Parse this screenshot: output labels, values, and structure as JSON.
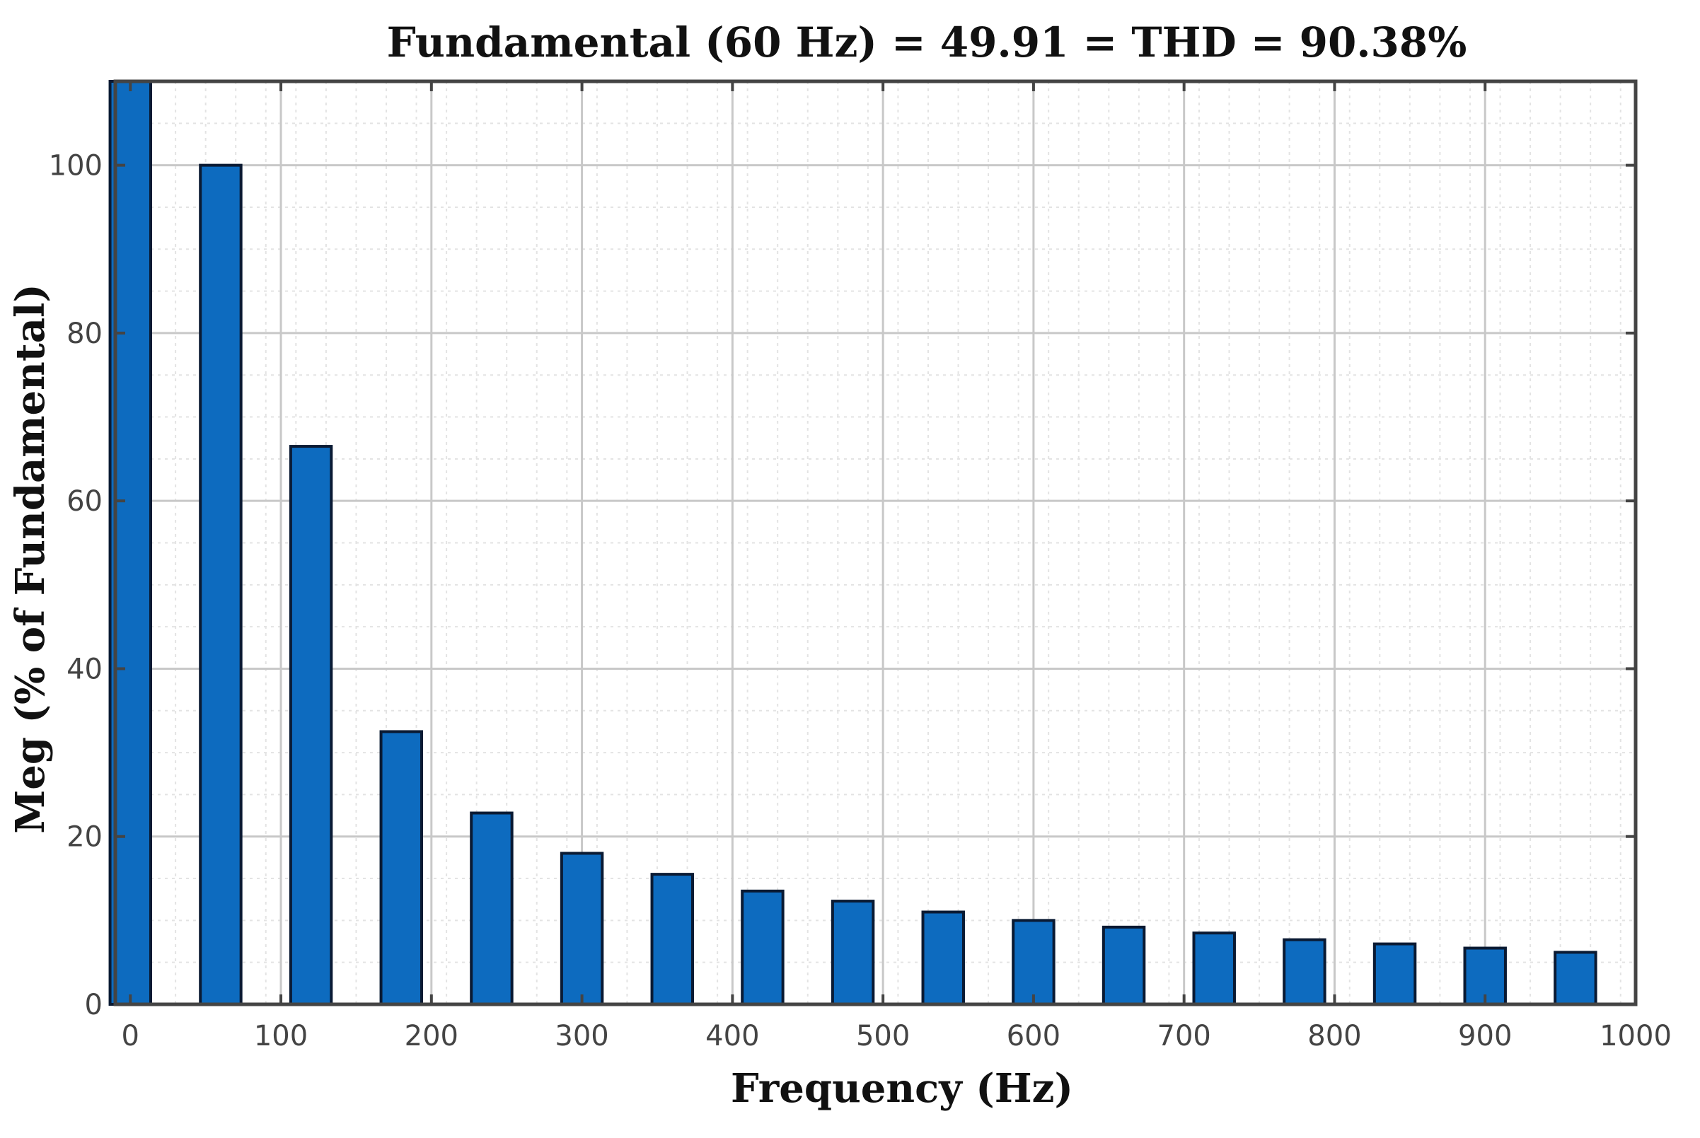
{
  "chart_data": {
    "type": "bar",
    "title": "Fundamental (60 Hz) = 49.91 = THD = 90.38%",
    "xlabel": "Frequency (Hz)",
    "ylabel": "Meg (% of Fundamental)",
    "x": [
      0,
      60,
      120,
      180,
      240,
      300,
      360,
      420,
      480,
      540,
      600,
      660,
      720,
      780,
      840,
      900,
      960
    ],
    "values": [
      110,
      100,
      66.5,
      32.5,
      22.8,
      18,
      15.5,
      13.5,
      12.3,
      11,
      10,
      9.2,
      8.5,
      7.7,
      7.2,
      6.7,
      6.2
    ],
    "xlim": [
      -10,
      1000
    ],
    "ylim": [
      0,
      110
    ],
    "xticks": [
      0,
      100,
      200,
      300,
      400,
      500,
      600,
      700,
      800,
      900,
      1000
    ],
    "yticks": [
      0,
      20,
      40,
      60,
      80,
      100
    ],
    "xtick_labels": [
      "0",
      "100",
      "200",
      "300",
      "400",
      "500",
      "600",
      "700",
      "800",
      "900",
      "1000"
    ],
    "ytick_labels": [
      "0",
      "20",
      "40",
      "60",
      "80",
      "100"
    ],
    "grid": "on",
    "minor_grid": "on",
    "bar_color": "#0d6bbf",
    "bar_edge_color": "#0a1a33"
  }
}
